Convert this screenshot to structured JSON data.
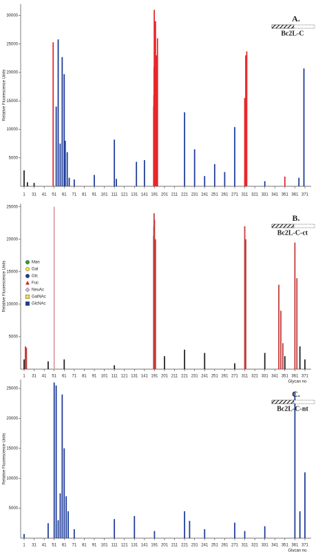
{
  "chart_data": [
    {
      "type": "bar",
      "panel_label": "A.",
      "protein": "Bc2L-C",
      "ylabel": "Relative Fluorescence Units",
      "x": [
        1,
        11,
        31,
        50,
        53,
        55,
        57,
        59,
        61,
        62,
        64,
        66,
        71,
        91,
        111,
        113,
        133,
        141,
        187,
        188,
        189,
        190,
        192,
        193,
        194,
        221,
        231,
        241,
        251,
        261,
        271,
        311,
        312,
        313,
        331,
        351,
        365,
        370
      ],
      "values": [
        2800,
        700,
        600,
        25300,
        14000,
        25800,
        7500,
        22700,
        19700,
        8000,
        6000,
        1500,
        1200,
        2000,
        8200,
        1300,
        4300,
        4600,
        14000,
        16000,
        21000,
        31000,
        29000,
        23000,
        26000,
        13000,
        6500,
        1800,
        3900,
        2500,
        10400,
        15500,
        23000,
        23700,
        900,
        1700,
        1500,
        20700
      ],
      "colors": [
        "#222222",
        "#222222",
        "#222222",
        "#e8262b",
        "#1f3d99",
        "#1f3d99",
        "#1f3d99",
        "#1f3d99",
        "#1f3d99",
        "#1f3d99",
        "#1f3d99",
        "#1f3d99",
        "#1f3d99",
        "#1f3d99",
        "#1f3d99",
        "#1f3d99",
        "#1f3d99",
        "#1f3d99",
        "#e8262b",
        "#e8262b",
        "#e8262b",
        "#e8262b",
        "#e8262b",
        "#e8262b",
        "#e8262b",
        "#1f3d99",
        "#1f3d99",
        "#1f3d99",
        "#1f3d99",
        "#1f3d99",
        "#1f3d99",
        "#e8262b",
        "#e8262b",
        "#e8262b",
        "#1f3d99",
        "#e8262b",
        "#1f3d99",
        "#1f3d99"
      ],
      "ylim": [
        0,
        32000
      ],
      "yticks": [
        5000,
        10000,
        15000,
        20000,
        25000,
        30000
      ],
      "xticks": [
        1,
        31,
        41,
        51,
        61,
        71,
        81,
        91,
        101,
        111,
        121,
        131,
        141,
        191,
        201,
        211,
        221,
        231,
        241,
        251,
        261,
        271,
        311,
        321,
        331,
        341,
        351,
        361,
        371
      ]
    },
    {
      "type": "bar",
      "panel_label": "B.",
      "protein": "Bc2L-C-ct",
      "ylabel": "Relative Fluorescence Units",
      "xlabel": "Glycan no",
      "x": [
        1,
        5,
        8,
        45,
        51,
        61,
        111,
        187,
        188,
        189,
        190,
        191,
        192,
        201,
        221,
        241,
        271,
        311,
        312,
        331,
        345,
        347,
        349,
        351,
        361,
        363,
        366,
        371
      ],
      "values": [
        1500,
        3500,
        3300,
        1200,
        25000,
        1500,
        600,
        20500,
        22000,
        24000,
        21000,
        23000,
        20000,
        2000,
        3000,
        2500,
        900,
        22000,
        20000,
        2500,
        13000,
        9000,
        4000,
        2000,
        19500,
        14000,
        3500,
        1500
      ],
      "colors": [
        "#222222",
        "#c43c3c",
        "#c43c3c",
        "#222222",
        "#d9a0a0",
        "#222222",
        "#222222",
        "#c43c3c",
        "#c43c3c",
        "#c43c3c",
        "#c43c3c",
        "#c43c3c",
        "#c43c3c",
        "#222222",
        "#222222",
        "#222222",
        "#222222",
        "#c43c3c",
        "#c43c3c",
        "#222222",
        "#c43c3c",
        "#c43c3c",
        "#c43c3c",
        "#222222",
        "#c43c3c",
        "#c43c3c",
        "#222222",
        "#222222"
      ],
      "ylim": [
        0,
        25500
      ],
      "yticks": [
        5000,
        10000,
        15000,
        20000,
        25000
      ],
      "xticks": [
        1,
        31,
        41,
        51,
        61,
        71,
        81,
        91,
        101,
        111,
        121,
        131,
        141,
        191,
        201,
        211,
        221,
        231,
        241,
        251,
        261,
        271,
        311,
        321,
        331,
        341,
        351,
        361,
        371
      ],
      "legend": [
        {
          "label": "Man",
          "color": "#2e9e3e",
          "shape": "circle"
        },
        {
          "label": "Gal",
          "color": "#f2e14a",
          "shape": "circle"
        },
        {
          "label": "Glc",
          "color": "#1f3d99",
          "shape": "circle"
        },
        {
          "label": "Fuc",
          "color": "#d22",
          "shape": "triangle"
        },
        {
          "label": "NeuAc",
          "color": "#c9b6e0",
          "shape": "diamond"
        },
        {
          "label": "GalNAc",
          "color": "#f2e14a",
          "shape": "square"
        },
        {
          "label": "GlcNAc",
          "color": "#1f3d99",
          "shape": "square"
        }
      ]
    },
    {
      "type": "bar",
      "panel_label": "C.",
      "protein": "Bc2L-C-nt",
      "ylabel": "Relative Fluorescence Units",
      "xlabel": "Glycan no",
      "x": [
        1,
        45,
        51,
        53,
        55,
        57,
        59,
        61,
        63,
        65,
        71,
        111,
        131,
        191,
        221,
        226,
        241,
        271,
        311,
        331,
        361,
        366,
        371
      ],
      "values": [
        700,
        2500,
        26000,
        25500,
        3000,
        7500,
        24000,
        15000,
        7000,
        4500,
        1500,
        3200,
        3700,
        1200,
        4500,
        2900,
        1500,
        2600,
        1200,
        2000,
        24500,
        4500,
        11000
      ],
      "color": "#1f3d99",
      "ylim": [
        0,
        26500
      ],
      "yticks": [
        5000,
        10000,
        15000,
        20000,
        25000
      ],
      "xticks": [
        1,
        31,
        41,
        51,
        61,
        71,
        81,
        91,
        101,
        111,
        121,
        131,
        141,
        191,
        201,
        211,
        221,
        231,
        241,
        251,
        261,
        271,
        311,
        321,
        331,
        341,
        351,
        361,
        371
      ]
    }
  ]
}
